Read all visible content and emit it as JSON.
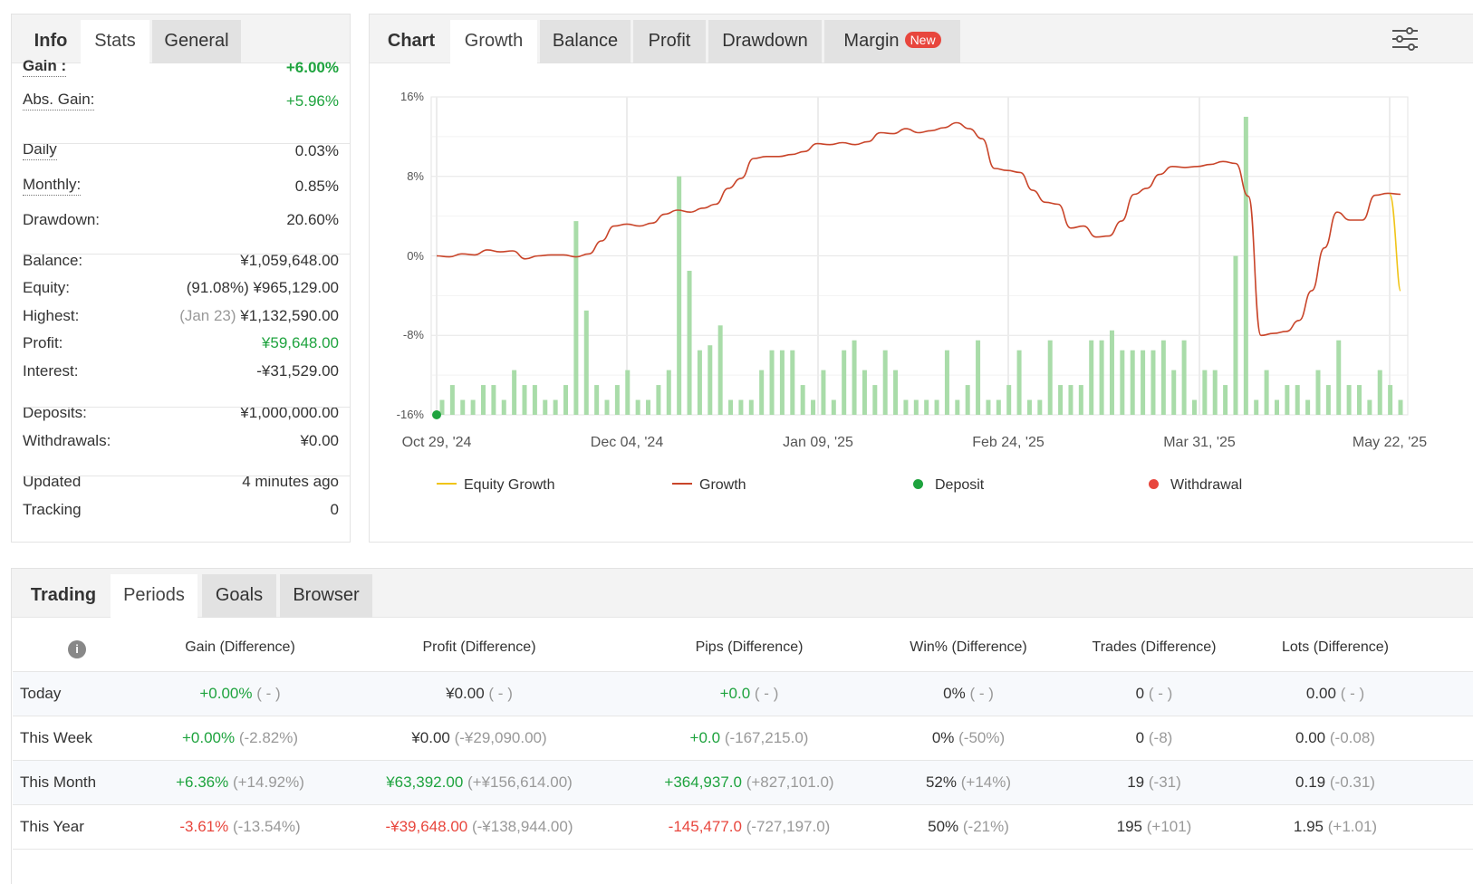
{
  "stats_panel": {
    "tabs": [
      "Info",
      "Stats",
      "General"
    ],
    "rows": [
      {
        "key": "Gain :",
        "value": "+6.00%",
        "green": true,
        "bold": true,
        "underline": true
      },
      {
        "key": "Abs. Gain:",
        "value": "+5.96%",
        "green": true,
        "underline": true
      },
      {
        "key": "Daily",
        "value": "0.03%",
        "underline": true
      },
      {
        "key": "Monthly:",
        "value": "0.85%",
        "underline": true
      },
      {
        "key": "Drawdown:",
        "value": "20.60%"
      },
      {
        "key": "Balance:",
        "value": "¥1,059,648.00"
      },
      {
        "key": "Equity:",
        "prefix": "(91.08%)",
        "value": "¥965,129.00"
      },
      {
        "key": "Highest:",
        "prefix": "(Jan 23)",
        "value": "¥1,132,590.00"
      },
      {
        "key": "Profit:",
        "value": "¥59,648.00",
        "green": true
      },
      {
        "key": "Interest:",
        "value": "-¥31,529.00"
      },
      {
        "key": "Deposits:",
        "value": "¥1,000,000.00"
      },
      {
        "key": "Withdrawals:",
        "value": "¥0.00"
      },
      {
        "key": "Updated",
        "value": "4 minutes ago"
      },
      {
        "key": "Tracking",
        "value": "0"
      }
    ]
  },
  "chart_panel": {
    "tabs": [
      "Chart",
      "Growth",
      "Balance",
      "Profit",
      "Drawdown",
      "Margin"
    ],
    "margin_badge": "New",
    "settings_icon": "sliders-icon"
  },
  "chart_data": {
    "type": "line",
    "y_ticks": [
      "16%",
      "8%",
      "0%",
      "-8%",
      "-16%"
    ],
    "ylim": [
      -16,
      16
    ],
    "x_ticks": [
      "Oct 29, '24",
      "Dec 04, '24",
      "Jan 09, '25",
      "Feb 24, '25",
      "Mar 31, '25",
      "May 22, '25"
    ],
    "legend": [
      {
        "label": "Equity Growth",
        "kind": "line",
        "color": "#f0c419"
      },
      {
        "label": "Growth",
        "kind": "line",
        "color": "#c9452a"
      },
      {
        "label": "Deposit",
        "kind": "dot",
        "color": "#1ea33e"
      },
      {
        "label": "Withdrawal",
        "kind": "dot",
        "color": "#e8463d"
      }
    ],
    "growth_series": [
      0.0,
      -0.1,
      0.2,
      0.1,
      0.6,
      0.4,
      0.5,
      -0.3,
      0.0,
      0.1,
      0.1,
      -0.1,
      0.2,
      1.5,
      3.0,
      3.2,
      3.0,
      3.3,
      4.2,
      4.6,
      4.4,
      4.8,
      5.2,
      6.8,
      7.8,
      9.8,
      10.0,
      10.0,
      10.2,
      10.5,
      11.3,
      11.2,
      11.4,
      11.2,
      11.5,
      12.4,
      12.3,
      12.8,
      12.4,
      12.6,
      12.9,
      13.4,
      12.8,
      11.8,
      8.8,
      8.6,
      8.4,
      6.6,
      5.4,
      5.2,
      2.8,
      3.0,
      1.9,
      2.0,
      3.5,
      6.2,
      6.8,
      8.2,
      9.0,
      8.9,
      9.0,
      9.2,
      9.5,
      9.3,
      6.0,
      -8.0,
      -7.8,
      -7.6,
      -6.5,
      -3.5,
      0.8,
      4.4,
      3.6,
      3.6,
      6.1,
      6.3,
      6.2
    ],
    "equity_series_tail": [
      6.2,
      -3.5
    ],
    "deposit_points": [
      {
        "x_index": 0,
        "y": -16
      }
    ],
    "bar_heights": [
      1.5,
      3.0,
      1.5,
      1.5,
      3.0,
      3.0,
      1.5,
      4.5,
      3.0,
      3.0,
      1.5,
      1.5,
      3.0,
      19.5,
      10.5,
      3.0,
      1.5,
      3.0,
      4.5,
      1.5,
      1.5,
      3.0,
      4.5,
      24.0,
      14.5,
      6.5,
      7.0,
      9.0,
      1.5,
      1.5,
      1.5,
      4.5,
      6.5,
      6.5,
      6.5,
      3.0,
      1.5,
      4.5,
      1.5,
      6.5,
      7.5,
      4.5,
      3.0,
      6.5,
      4.5,
      1.5,
      1.5,
      1.5,
      1.5,
      6.5,
      1.5,
      3.0,
      7.5,
      1.5,
      1.5,
      3.0,
      6.5,
      1.5,
      1.5,
      7.5,
      3.0,
      3.0,
      3.0,
      7.5,
      7.5,
      8.5,
      6.5,
      6.5,
      6.5,
      6.5,
      7.5,
      4.5,
      7.5,
      1.5,
      4.5,
      4.5,
      3.0,
      16.0,
      30.0,
      1.5,
      4.5,
      1.5,
      3.0,
      3.0,
      1.5,
      4.5,
      3.0,
      7.5,
      3.0,
      3.0,
      1.5,
      4.5,
      3.0,
      1.5
    ]
  },
  "periods_panel": {
    "tabs": [
      "Trading",
      "Periods",
      "Goals",
      "Browser"
    ],
    "info_icon": "info-icon",
    "headers": [
      "Gain (Difference)",
      "Profit (Difference)",
      "Pips (Difference)",
      "Win% (Difference)",
      "Trades (Difference)",
      "Lots (Difference)"
    ],
    "rows": [
      {
        "label": "Today",
        "cells": [
          [
            "+0.00%",
            "g",
            "( - )"
          ],
          [
            "¥0.00",
            "",
            "( - )"
          ],
          [
            "+0.0",
            "g",
            "( - )"
          ],
          [
            "0%",
            "",
            "( - )"
          ],
          [
            "0",
            "",
            "( - )"
          ],
          [
            "0.00",
            "",
            "( - )"
          ]
        ]
      },
      {
        "label": "This Week",
        "cells": [
          [
            "+0.00%",
            "g",
            "(-2.82%)"
          ],
          [
            "¥0.00",
            "",
            "(-¥29,090.00)"
          ],
          [
            "+0.0",
            "g",
            "(-167,215.0)"
          ],
          [
            "0%",
            "",
            "(-50%)"
          ],
          [
            "0",
            "",
            "(-8)"
          ],
          [
            "0.00",
            "",
            "(-0.08)"
          ]
        ]
      },
      {
        "label": "This Month",
        "cells": [
          [
            "+6.36%",
            "g",
            "(+14.92%)"
          ],
          [
            "¥63,392.00",
            "g",
            "(+¥156,614.00)"
          ],
          [
            "+364,937.0",
            "g",
            "(+827,101.0)"
          ],
          [
            "52%",
            "",
            "(+14%)"
          ],
          [
            "19",
            "",
            "(-31)"
          ],
          [
            "0.19",
            "",
            "(-0.31)"
          ]
        ]
      },
      {
        "label": "This Year",
        "cells": [
          [
            "-3.61%",
            "r",
            "(-13.54%)"
          ],
          [
            "-¥39,648.00",
            "r",
            "(-¥138,944.00)"
          ],
          [
            "-145,477.0",
            "r",
            "(-727,197.0)"
          ],
          [
            "50%",
            "",
            "(-21%)"
          ],
          [
            "195",
            "",
            "(+101)"
          ],
          [
            "1.95",
            "",
            "(+1.01)"
          ]
        ]
      }
    ]
  }
}
